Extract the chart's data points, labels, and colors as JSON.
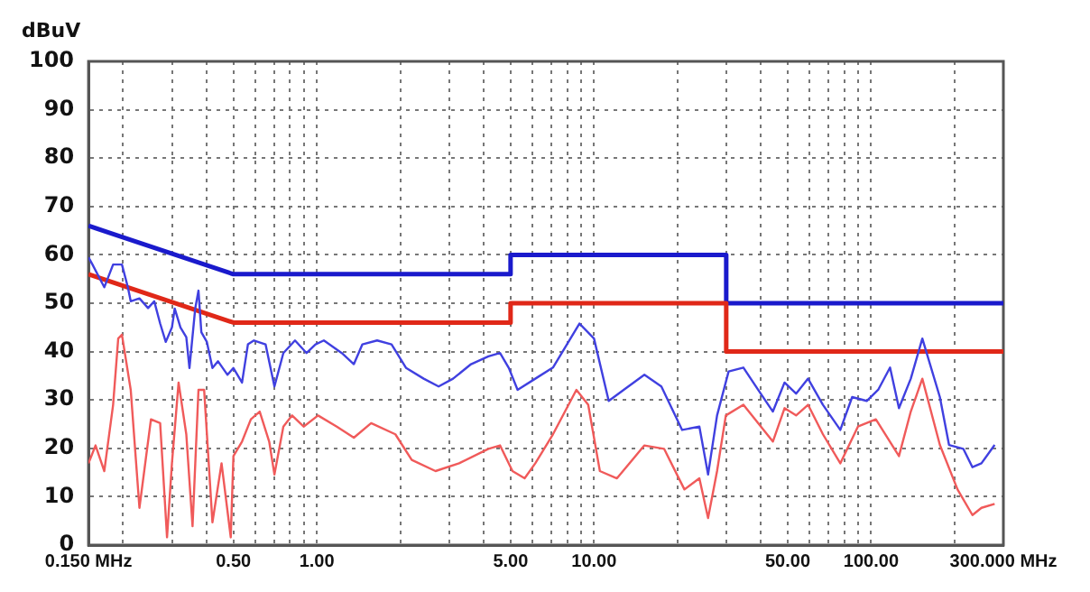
{
  "chart_data": {
    "type": "line",
    "ylabel": "dBuV",
    "log": "x",
    "grid": true,
    "legend": false,
    "marker": "none",
    "line_style": "solid",
    "xlim": [
      0.15,
      300
    ],
    "ylim": [
      0,
      100
    ],
    "xticks": [
      {
        "value": 0.15,
        "label": "0.150 MHz"
      },
      {
        "value": 0.2,
        "label": null
      },
      {
        "value": 0.3,
        "label": null
      },
      {
        "value": 0.4,
        "label": null
      },
      {
        "value": 0.5,
        "label": "0.50"
      },
      {
        "value": 0.6,
        "label": null
      },
      {
        "value": 0.7,
        "label": null
      },
      {
        "value": 0.8,
        "label": null
      },
      {
        "value": 0.9,
        "label": null
      },
      {
        "value": 1,
        "label": "1.00"
      },
      {
        "value": 2,
        "label": null
      },
      {
        "value": 3,
        "label": null
      },
      {
        "value": 4,
        "label": null
      },
      {
        "value": 5,
        "label": "5.00"
      },
      {
        "value": 6,
        "label": null
      },
      {
        "value": 7,
        "label": null
      },
      {
        "value": 8,
        "label": null
      },
      {
        "value": 9,
        "label": null
      },
      {
        "value": 10,
        "label": "10.00"
      },
      {
        "value": 20,
        "label": null
      },
      {
        "value": 30,
        "label": null
      },
      {
        "value": 40,
        "label": null
      },
      {
        "value": 50,
        "label": "50.00"
      },
      {
        "value": 60,
        "label": null
      },
      {
        "value": 70,
        "label": null
      },
      {
        "value": 80,
        "label": null
      },
      {
        "value": 90,
        "label": null
      },
      {
        "value": 100,
        "label": "100.00"
      },
      {
        "value": 200,
        "label": null
      },
      {
        "value": 300,
        "label": "300.000 MHz"
      }
    ],
    "yticks": [
      0,
      10,
      20,
      30,
      40,
      50,
      60,
      70,
      80,
      90,
      100
    ],
    "series": [
      {
        "color": "#f05a5a",
        "x": [
          0.15,
          0.159,
          0.171,
          0.184,
          0.192,
          0.198,
          0.213,
          0.229,
          0.252,
          0.272,
          0.288,
          0.3,
          0.317,
          0.338,
          0.356,
          0.374,
          0.392,
          0.42,
          0.453,
          0.489,
          0.5,
          0.537,
          0.578,
          0.622,
          0.673,
          0.703,
          0.757,
          0.814,
          0.896,
          1.01,
          1.18,
          1.36,
          1.57,
          1.92,
          2.2,
          2.68,
          3.26,
          4.16,
          4.58,
          5.08,
          5.62,
          6.14,
          7.11,
          8.64,
          9.53,
          10.5,
          12.1,
          15.2,
          17.9,
          21.2,
          24.0,
          25.8,
          27.8,
          29.9,
          34.6,
          44.2,
          48.7,
          53.6,
          59.2,
          67.0,
          77.4,
          89.6,
          104,
          126,
          139,
          153,
          177,
          205,
          232,
          250,
          279
        ],
        "values": [
          16.9,
          20.6,
          15.3,
          29.0,
          42.7,
          43.5,
          32.1,
          7.7,
          26.0,
          25.2,
          1.6,
          16.9,
          33.6,
          22.9,
          3.9,
          32.1,
          32.1,
          4.7,
          16.9,
          1.6,
          18.4,
          21.4,
          26.0,
          27.6,
          21.4,
          14.6,
          24.5,
          26.8,
          24.5,
          26.8,
          24.5,
          22.2,
          25.2,
          22.9,
          17.6,
          15.3,
          16.9,
          19.9,
          20.6,
          15.3,
          13.8,
          16.9,
          22.9,
          32.1,
          29.0,
          15.3,
          13.8,
          20.6,
          19.9,
          11.5,
          13.8,
          5.6,
          15.3,
          26.8,
          29.0,
          21.4,
          28.3,
          26.8,
          29.0,
          22.9,
          16.9,
          24.5,
          26.0,
          18.4,
          27.6,
          34.4,
          20.7,
          11.5,
          6.2,
          7.7,
          8.5
        ]
      },
      {
        "color": "#4040e0",
        "x": [
          0.15,
          0.155,
          0.171,
          0.184,
          0.198,
          0.208,
          0.213,
          0.229,
          0.246,
          0.259,
          0.272,
          0.285,
          0.3,
          0.307,
          0.322,
          0.338,
          0.347,
          0.364,
          0.374,
          0.383,
          0.401,
          0.42,
          0.44,
          0.476,
          0.5,
          0.537,
          0.564,
          0.593,
          0.653,
          0.703,
          0.757,
          0.834,
          0.918,
          0.989,
          1.06,
          1.23,
          1.36,
          1.46,
          1.65,
          1.86,
          2.1,
          2.43,
          2.75,
          3.1,
          3.6,
          4.16,
          4.58,
          4.93,
          5.3,
          6.14,
          7.11,
          8.86,
          10.0,
          11.3,
          12.8,
          15.2,
          17.5,
          20.8,
          24.0,
          25.8,
          27.8,
          30.6,
          34.6,
          39.1,
          44.2,
          48.7,
          53.6,
          59.2,
          67.0,
          77.4,
          85.4,
          96.4,
          106,
          117,
          126,
          139,
          153,
          177,
          191,
          215,
          232,
          250,
          279
        ],
        "values": [
          59.5,
          58,
          53.3,
          58,
          58,
          53.3,
          50.4,
          51,
          49,
          50.4,
          45.8,
          42,
          45,
          48.9,
          45,
          43,
          36.6,
          48.9,
          52.6,
          44,
          42,
          36.6,
          38,
          35.2,
          36.6,
          33.6,
          41.5,
          42.3,
          41.5,
          32.8,
          39.7,
          42.3,
          39.7,
          41.5,
          42.3,
          39.7,
          37.4,
          41.5,
          42.3,
          41.5,
          36.6,
          34.4,
          32.8,
          34.4,
          37.4,
          39,
          39.7,
          36.6,
          32.1,
          34.4,
          36.7,
          45.8,
          42.7,
          29.8,
          32.1,
          35.2,
          32.8,
          23.8,
          24.5,
          14.6,
          26.8,
          35.9,
          36.7,
          32.1,
          27.6,
          33.6,
          31.3,
          34.4,
          29.0,
          23.8,
          30.6,
          29.8,
          32.1,
          36.7,
          28.3,
          34.4,
          42.7,
          30.6,
          20.7,
          19.9,
          16.1,
          16.9,
          20.7
        ]
      },
      {
        "color": "#e02818",
        "x": [
          0.15,
          0.5,
          5,
          5,
          30,
          30,
          300
        ],
        "values": [
          56,
          46,
          46,
          50,
          50,
          40,
          40
        ]
      },
      {
        "color": "#1a1acc",
        "x": [
          0.15,
          0.5,
          5,
          5,
          30,
          30,
          300
        ],
        "values": [
          66,
          56,
          56,
          60,
          60,
          50,
          50
        ]
      }
    ]
  }
}
